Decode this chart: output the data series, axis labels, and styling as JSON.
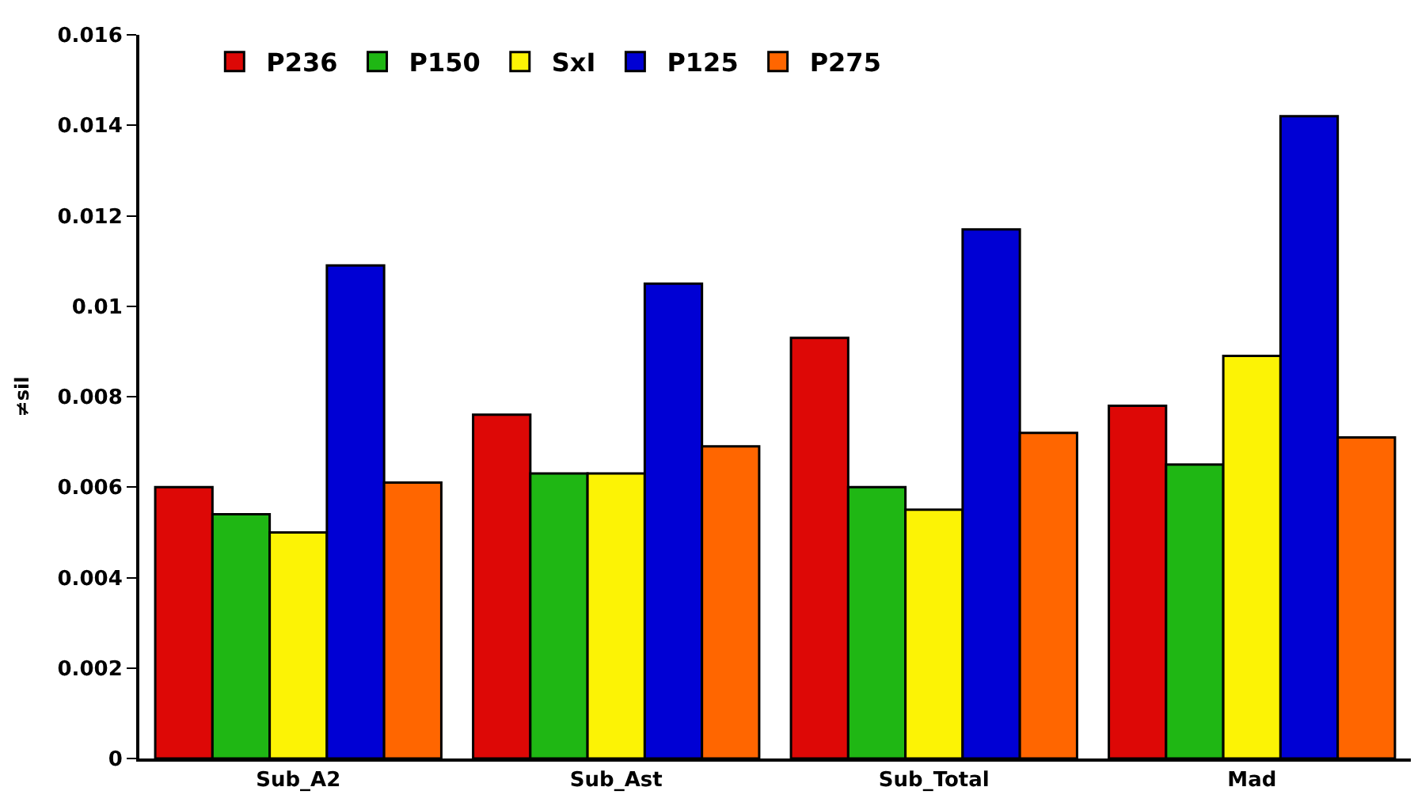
{
  "chart_data": {
    "type": "bar",
    "ylabel": "≠sil",
    "categories": [
      "Sub_A2",
      "Sub_Ast",
      "Sub_Total",
      "Mad"
    ],
    "series": [
      {
        "name": "P236",
        "color": "#dd0806",
        "values": [
          0.006,
          0.0076,
          0.0093,
          0.0078
        ]
      },
      {
        "name": "P150",
        "color": "#1fb714",
        "values": [
          0.0054,
          0.0063,
          0.006,
          0.0065
        ]
      },
      {
        "name": "SxI",
        "color": "#fcf305",
        "values": [
          0.005,
          0.0063,
          0.0055,
          0.0089
        ]
      },
      {
        "name": "P125",
        "color": "#0000d4",
        "values": [
          0.0109,
          0.0105,
          0.0117,
          0.0142
        ]
      },
      {
        "name": "P275",
        "color": "#ff6600",
        "values": [
          0.0061,
          0.0069,
          0.0072,
          0.0071
        ]
      }
    ],
    "ylim": [
      0,
      0.016
    ],
    "yticks": [
      0,
      0.002,
      0.004,
      0.006,
      0.008,
      0.01,
      0.012,
      0.014,
      0.016
    ],
    "grid": false,
    "legend": "top left"
  }
}
